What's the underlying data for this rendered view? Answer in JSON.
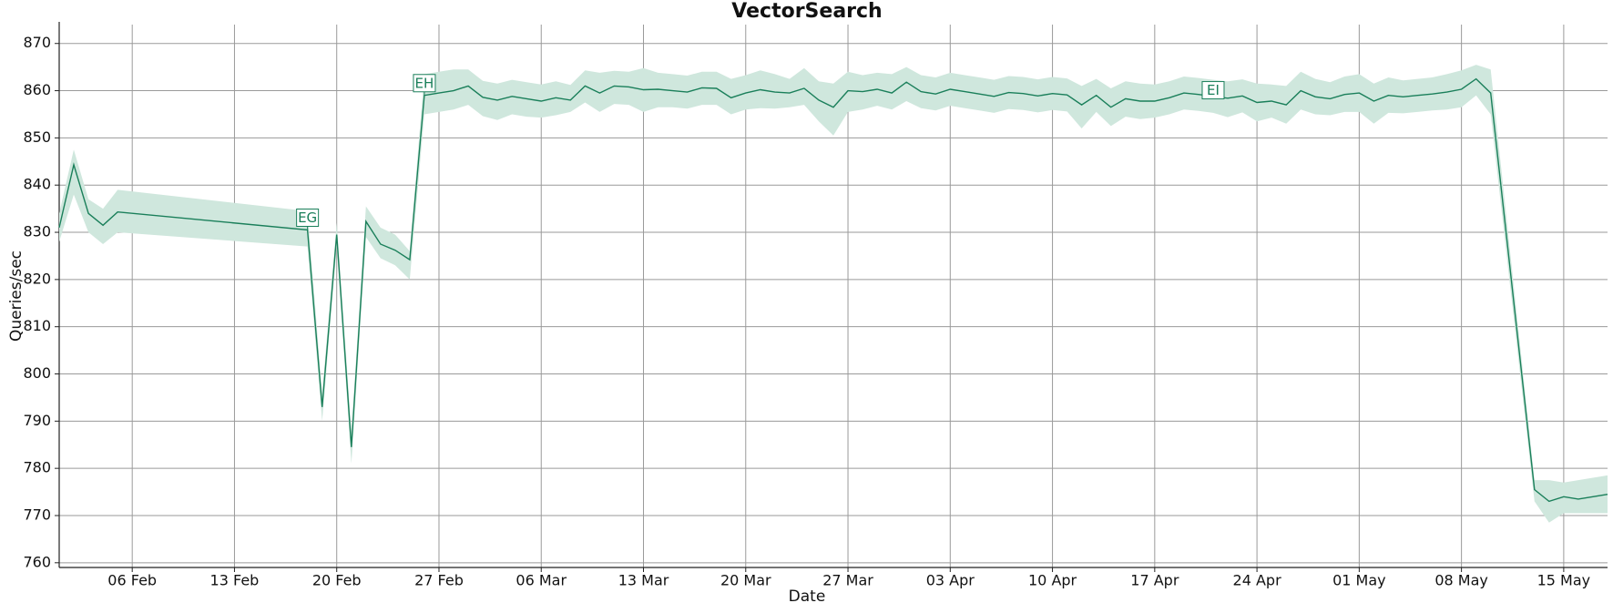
{
  "chart_data": {
    "type": "line",
    "title": "VectorSearch",
    "xlabel": "Date",
    "ylabel": "Queries/sec",
    "x": [
      "02-01",
      "02-02",
      "02-03",
      "02-04",
      "02-05",
      "02-18",
      "02-19",
      "02-20",
      "02-21",
      "02-22",
      "02-23",
      "02-24",
      "02-25",
      "02-26",
      "02-27",
      "02-28",
      "03-01",
      "03-02",
      "03-03",
      "03-04",
      "03-05",
      "03-06",
      "03-07",
      "03-08",
      "03-09",
      "03-10",
      "03-11",
      "03-12",
      "03-13",
      "03-14",
      "03-15",
      "03-16",
      "03-17",
      "03-18",
      "03-19",
      "03-20",
      "03-21",
      "03-22",
      "03-23",
      "03-24",
      "03-25",
      "03-26",
      "03-27",
      "03-28",
      "03-29",
      "03-30",
      "03-31",
      "04-01",
      "04-02",
      "04-03",
      "04-04",
      "04-05",
      "04-06",
      "04-07",
      "04-08",
      "04-09",
      "04-10",
      "04-11",
      "04-12",
      "04-13",
      "04-14",
      "04-15",
      "04-16",
      "04-17",
      "04-18",
      "04-19",
      "04-20",
      "04-21",
      "04-22",
      "04-23",
      "04-24",
      "04-25",
      "04-26",
      "04-27",
      "04-28",
      "04-29",
      "04-30",
      "05-01",
      "05-02",
      "05-03",
      "05-04",
      "05-05",
      "05-06",
      "05-07",
      "05-08",
      "05-09",
      "05-10",
      "05-13",
      "05-14",
      "05-15",
      "05-16",
      "05-17",
      "05-18"
    ],
    "series": [
      {
        "color": "#1a7f5a",
        "band_color": "#cfe7dd",
        "values": [
          831,
          844.3,
          834,
          831.5,
          834.3,
          830.5,
          793,
          829.5,
          784.5,
          832.3,
          827.5,
          826.2,
          824.2,
          859,
          859.5,
          860,
          861,
          858.6,
          858,
          858.8,
          858.3,
          857.8,
          858.5,
          858,
          861,
          859.5,
          861,
          860.8,
          860.2,
          860.3,
          860,
          859.7,
          860.6,
          860.5,
          858.5,
          859.5,
          860.2,
          859.7,
          859.5,
          860.5,
          858,
          856.5,
          860,
          859.8,
          860.3,
          859.5,
          861.8,
          859.8,
          859.3,
          860.3,
          859.8,
          859.3,
          858.8,
          859.6,
          859.4,
          858.9,
          859.4,
          859.1,
          857,
          859,
          856.5,
          858.3,
          857.8,
          857.8,
          858.5,
          859.5,
          859.2,
          858.8,
          858.4,
          858.9,
          857.5,
          857.8,
          857,
          860,
          858.7,
          858.3,
          859.2,
          859.5,
          857.8,
          859,
          858.7,
          859,
          859.3,
          859.7,
          860.3,
          862.5,
          859.5,
          775.5,
          773,
          774,
          773.5,
          774,
          774.5
        ],
        "lower": [
          828,
          838,
          830,
          827.5,
          830,
          827,
          790,
          827,
          781,
          829,
          824.5,
          823,
          820,
          855,
          855.5,
          856,
          857,
          854.6,
          853.8,
          855,
          854.5,
          854.3,
          854.8,
          855.5,
          857.5,
          855.5,
          857.2,
          857,
          855.5,
          856.5,
          856.5,
          856.2,
          857,
          857,
          855,
          856,
          856.3,
          856.2,
          856.5,
          857,
          853.5,
          850.5,
          855.5,
          856,
          856.8,
          856,
          857.8,
          856.3,
          855.8,
          856.8,
          856.3,
          855.8,
          855.3,
          856.1,
          855.9,
          855.4,
          855.9,
          855.6,
          852,
          855.5,
          852.5,
          854.5,
          854,
          854.3,
          855,
          856,
          855.7,
          855.3,
          854.4,
          855.4,
          853.5,
          854.3,
          853,
          856,
          855,
          854.8,
          855.5,
          855.5,
          853,
          855.3,
          855.2,
          855.5,
          855.8,
          856,
          856.5,
          859,
          855,
          773,
          768.5,
          770.5,
          770.5,
          770.5,
          770.5
        ],
        "upper": [
          834,
          847.5,
          837,
          835,
          839,
          834.5,
          796,
          832,
          788,
          835.5,
          831,
          829.5,
          826,
          863.5,
          864,
          864.5,
          864.5,
          862.1,
          861.5,
          862.3,
          861.8,
          861.3,
          862,
          861.2,
          864.3,
          863.8,
          864.2,
          864,
          864.8,
          863.8,
          863.5,
          863.2,
          864,
          864,
          862.5,
          863.3,
          864.3,
          863.5,
          862.5,
          864.8,
          862,
          861.5,
          864,
          863.3,
          863.8,
          863.5,
          865,
          863.3,
          862.8,
          863.8,
          863.3,
          862.8,
          862.3,
          863.1,
          862.9,
          862.4,
          862.9,
          862.6,
          861,
          862.5,
          860.5,
          862,
          861.5,
          861.3,
          862,
          863,
          862.7,
          862.3,
          862,
          862.4,
          861.5,
          861.3,
          861,
          864,
          862.5,
          861.8,
          863,
          863.5,
          861.5,
          862.8,
          862.2,
          862.5,
          862.8,
          863.5,
          864.3,
          865.5,
          864.5,
          777.5,
          777.5,
          777,
          777.5,
          778,
          778.5
        ]
      }
    ],
    "annotations": [
      {
        "text": "EG",
        "x": "02-18",
        "y": 833
      },
      {
        "text": "EH",
        "x": "02-26",
        "y": 861.5
      },
      {
        "text": "EI",
        "x": "04-21",
        "y": 860
      }
    ],
    "xlim": [
      "02-01",
      "05-18"
    ],
    "xticks": [
      {
        "value": "02-06",
        "label": "06 Feb"
      },
      {
        "value": "02-13",
        "label": "13 Feb"
      },
      {
        "value": "02-20",
        "label": "20 Feb"
      },
      {
        "value": "02-27",
        "label": "27 Feb"
      },
      {
        "value": "03-06",
        "label": "06 Mar"
      },
      {
        "value": "03-13",
        "label": "13 Mar"
      },
      {
        "value": "03-20",
        "label": "20 Mar"
      },
      {
        "value": "03-27",
        "label": "27 Mar"
      },
      {
        "value": "04-03",
        "label": "03 Apr"
      },
      {
        "value": "04-10",
        "label": "10 Apr"
      },
      {
        "value": "04-17",
        "label": "17 Apr"
      },
      {
        "value": "04-24",
        "label": "24 Apr"
      },
      {
        "value": "05-01",
        "label": "01 May"
      },
      {
        "value": "05-08",
        "label": "08 May"
      },
      {
        "value": "05-15",
        "label": "15 May"
      }
    ],
    "ylim": [
      759,
      874
    ],
    "yticks": [
      760,
      770,
      780,
      790,
      800,
      810,
      820,
      830,
      840,
      850,
      860,
      870
    ],
    "grid": true
  }
}
